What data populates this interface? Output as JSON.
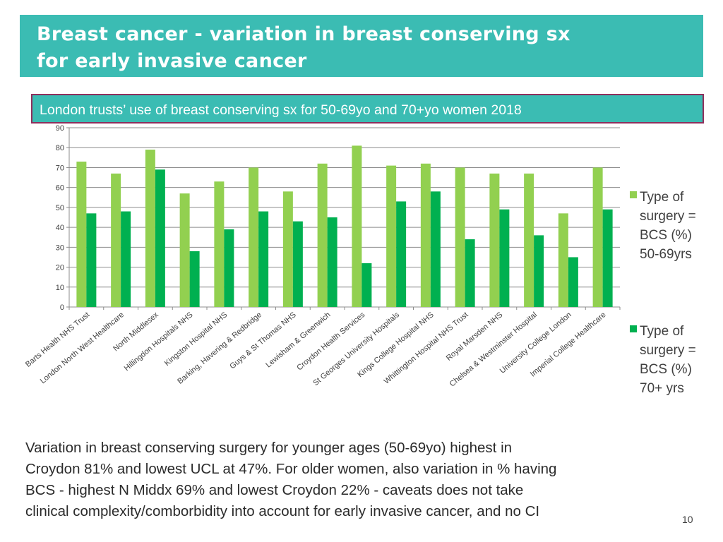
{
  "slide": {
    "title_line1": "Breast cancer - variation in breast conserving sx",
    "title_line2": "for early invasive cancer",
    "subtitle": "London trusts’ use of breast conserving sx for 50-69yo and 70+yo women 2018",
    "note_lines": [
      "Variation in breast conserving surgery for younger ages (50-69yo)  highest in",
      "Croydon 81% and lowest UCL at 47%.  For older women, also variation in % having",
      "BCS  - highest  N Middx 69% and lowest Croydon 22% -  caveats does not take",
      "clinical complexity/comborbidity into account for early invasive cancer, and no CI"
    ],
    "page_number": "10"
  },
  "colors": {
    "header_bg": "#3bbcb3",
    "subtitle_border": "#8e2f5c",
    "series_50_69": "#92d050",
    "series_70_plus": "#00b050"
  },
  "chart_data": {
    "type": "bar",
    "title": "London trusts’ use of breast conserving sx for 50-69yo and 70+yo women 2018",
    "xlabel": "",
    "ylabel": "",
    "ylim": [
      0,
      90
    ],
    "yticks": [
      0,
      10,
      20,
      30,
      40,
      50,
      60,
      70,
      80,
      90
    ],
    "grid": true,
    "legend_position": "right",
    "categories": [
      "Barts Health NHS Trust",
      "London North West Healthcare",
      "North Middlesex",
      "Hillingdon Hospitals NHS",
      "Kingston Hospital NHS",
      "Barking, Havering & Redbridge",
      "Guys & St Thomas NHS",
      "Lewisham & Greenwich",
      "Croydon Health Services",
      "St Georges University Hospitals",
      "Kings College Hospital NHS",
      "Whittington Hospital NHS Trust",
      "Royal Marsden NHS",
      "Chelsea & Westminster Hospital",
      "University College London",
      "Imperial College Healthcare"
    ],
    "series": [
      {
        "name": "Type of surgery = BCS (%) 50-69yrs",
        "legend_lines": [
          "Type of",
          "surgery =",
          "BCS (%)",
          "50-69yrs"
        ],
        "values": [
          73,
          67,
          79,
          57,
          63,
          70,
          58,
          72,
          81,
          71,
          72,
          70,
          67,
          67,
          47,
          70
        ]
      },
      {
        "name": "Type of surgery = BCS (%) 70+ yrs",
        "legend_lines": [
          "Type of",
          "surgery =",
          "BCS (%)",
          "70+ yrs"
        ],
        "values": [
          47,
          48,
          69,
          28,
          39,
          48,
          43,
          45,
          22,
          53,
          58,
          34,
          49,
          36,
          25,
          49
        ]
      }
    ]
  }
}
